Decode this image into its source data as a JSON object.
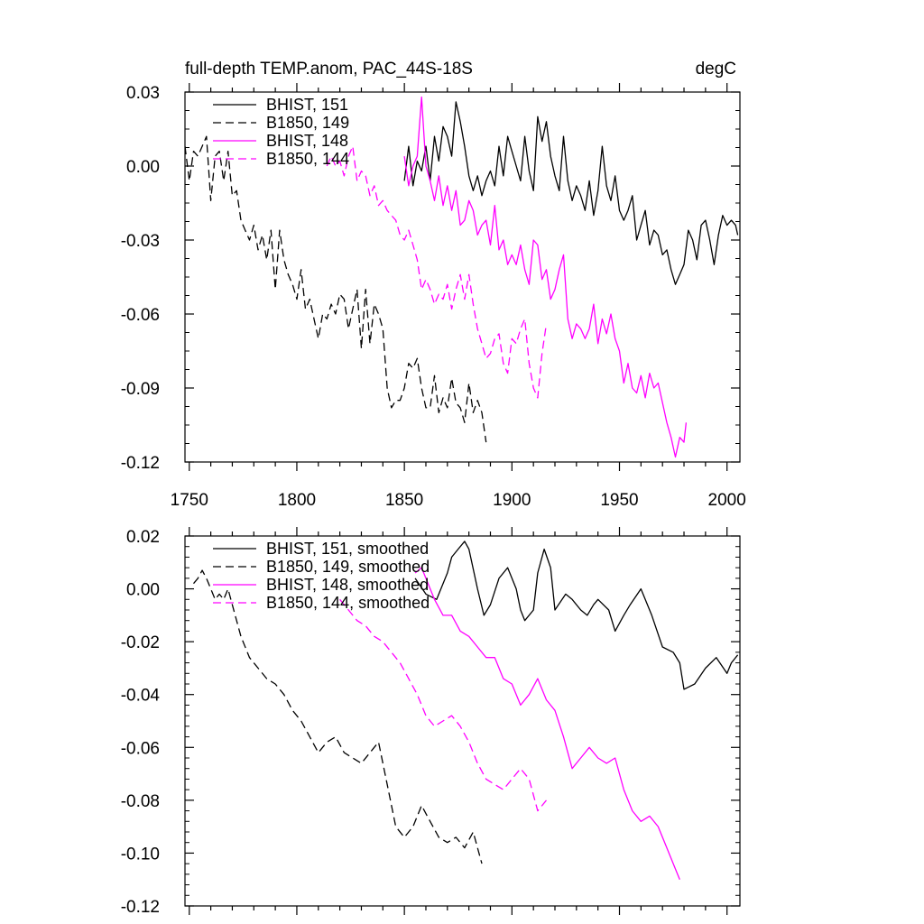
{
  "chart_data": [
    {
      "type": "line",
      "title": "full-depth TEMP.anom, PAC_44S-18S",
      "units": "degC",
      "xlim": [
        1748,
        2006
      ],
      "ylim": [
        -0.12,
        0.03
      ],
      "xticks": [
        1750,
        1800,
        1850,
        1900,
        1950,
        2000
      ],
      "yticks": [
        0.03,
        0.0,
        -0.03,
        -0.06,
        -0.09,
        -0.12
      ],
      "ytick_labels": [
        "0.03",
        "0.00",
        "-0.03",
        "-0.06",
        "-0.09",
        "-0.12"
      ],
      "legend_placement": "top-left",
      "series": [
        {
          "name": "BHIST, 151",
          "color": "#000000",
          "dash": "solid",
          "x": [
            1850,
            1852,
            1854,
            1856,
            1858,
            1860,
            1862,
            1864,
            1866,
            1868,
            1870,
            1872,
            1874,
            1876,
            1878,
            1880,
            1882,
            1884,
            1886,
            1888,
            1890,
            1892,
            1894,
            1896,
            1898,
            1900,
            1902,
            1904,
            1906,
            1908,
            1910,
            1912,
            1914,
            1916,
            1918,
            1920,
            1922,
            1924,
            1926,
            1928,
            1930,
            1932,
            1934,
            1936,
            1938,
            1940,
            1942,
            1944,
            1946,
            1948,
            1950,
            1952,
            1954,
            1956,
            1958,
            1960,
            1962,
            1964,
            1966,
            1968,
            1970,
            1972,
            1974,
            1976,
            1978,
            1980,
            1982,
            1984,
            1986,
            1988,
            1990,
            1992,
            1994,
            1996,
            1998,
            2000,
            2002,
            2004,
            2005
          ],
          "y": [
            -0.006,
            0.008,
            -0.008,
            0.002,
            -0.002,
            0.008,
            -0.006,
            0.012,
            0.002,
            0.016,
            0.012,
            0.004,
            0.026,
            0.018,
            0.008,
            -0.004,
            -0.01,
            -0.004,
            -0.012,
            -0.006,
            -0.002,
            -0.008,
            0.008,
            -0.004,
            0.012,
            0.006,
            0.0,
            -0.006,
            0.012,
            -0.002,
            -0.01,
            0.02,
            0.01,
            0.018,
            0.004,
            -0.004,
            -0.01,
            0.012,
            -0.006,
            -0.014,
            -0.008,
            -0.012,
            -0.018,
            -0.006,
            -0.02,
            -0.01,
            0.008,
            -0.008,
            -0.014,
            -0.004,
            -0.018,
            -0.022,
            -0.018,
            -0.012,
            -0.03,
            -0.024,
            -0.018,
            -0.032,
            -0.026,
            -0.028,
            -0.036,
            -0.034,
            -0.042,
            -0.048,
            -0.044,
            -0.04,
            -0.026,
            -0.03,
            -0.038,
            -0.024,
            -0.022,
            -0.03,
            -0.04,
            -0.028,
            -0.02,
            -0.024,
            -0.022,
            -0.024,
            -0.028
          ]
        },
        {
          "name": "B1850, 149",
          "color": "#000000",
          "dash": "dash",
          "x": [
            1748,
            1750,
            1752,
            1754,
            1756,
            1758,
            1760,
            1762,
            1764,
            1766,
            1768,
            1770,
            1772,
            1774,
            1776,
            1778,
            1780,
            1782,
            1784,
            1786,
            1788,
            1790,
            1792,
            1794,
            1796,
            1798,
            1800,
            1802,
            1804,
            1806,
            1808,
            1810,
            1812,
            1814,
            1816,
            1818,
            1820,
            1822,
            1824,
            1826,
            1828,
            1830,
            1832,
            1834,
            1836,
            1838,
            1840,
            1842,
            1844,
            1846,
            1848,
            1850,
            1852,
            1854,
            1856,
            1858,
            1860,
            1862,
            1864,
            1866,
            1868,
            1870,
            1872,
            1874,
            1876,
            1878,
            1880,
            1882,
            1884,
            1886,
            1888
          ],
          "y": [
            0.008,
            -0.006,
            0.006,
            0.004,
            0.008,
            0.012,
            -0.014,
            0.004,
            0.006,
            -0.006,
            0.006,
            -0.012,
            -0.01,
            -0.022,
            -0.026,
            -0.03,
            -0.024,
            -0.034,
            -0.028,
            -0.038,
            -0.026,
            -0.05,
            -0.026,
            -0.038,
            -0.044,
            -0.048,
            -0.054,
            -0.042,
            -0.058,
            -0.054,
            -0.062,
            -0.07,
            -0.06,
            -0.062,
            -0.056,
            -0.06,
            -0.052,
            -0.054,
            -0.066,
            -0.058,
            -0.05,
            -0.074,
            -0.05,
            -0.072,
            -0.056,
            -0.06,
            -0.066,
            -0.09,
            -0.098,
            -0.095,
            -0.095,
            -0.09,
            -0.08,
            -0.082,
            -0.078,
            -0.09,
            -0.098,
            -0.098,
            -0.085,
            -0.1,
            -0.094,
            -0.098,
            -0.086,
            -0.096,
            -0.098,
            -0.104,
            -0.088,
            -0.1,
            -0.095,
            -0.1,
            -0.112
          ]
        },
        {
          "name": "BHIST, 148",
          "color": "#ff00ff",
          "dash": "solid",
          "x": [
            1850,
            1852,
            1854,
            1856,
            1858,
            1860,
            1862,
            1864,
            1866,
            1868,
            1870,
            1872,
            1874,
            1876,
            1878,
            1880,
            1882,
            1884,
            1886,
            1888,
            1890,
            1892,
            1894,
            1896,
            1898,
            1900,
            1902,
            1904,
            1906,
            1908,
            1910,
            1912,
            1914,
            1916,
            1918,
            1920,
            1922,
            1924,
            1926,
            1928,
            1930,
            1932,
            1934,
            1936,
            1938,
            1940,
            1942,
            1944,
            1946,
            1948,
            1950,
            1952,
            1954,
            1956,
            1958,
            1960,
            1962,
            1964,
            1966,
            1968,
            1970,
            1972,
            1974,
            1976,
            1978,
            1980,
            1981
          ],
          "y": [
            0.004,
            -0.008,
            0.0,
            0.004,
            0.028,
            0.0,
            -0.006,
            -0.014,
            -0.004,
            -0.016,
            -0.008,
            -0.018,
            -0.01,
            -0.024,
            -0.022,
            -0.014,
            -0.018,
            -0.028,
            -0.024,
            -0.022,
            -0.032,
            -0.016,
            -0.034,
            -0.03,
            -0.04,
            -0.036,
            -0.04,
            -0.032,
            -0.042,
            -0.048,
            -0.03,
            -0.032,
            -0.046,
            -0.042,
            -0.054,
            -0.05,
            -0.042,
            -0.036,
            -0.062,
            -0.07,
            -0.064,
            -0.066,
            -0.07,
            -0.066,
            -0.056,
            -0.072,
            -0.062,
            -0.068,
            -0.06,
            -0.07,
            -0.075,
            -0.088,
            -0.08,
            -0.09,
            -0.092,
            -0.085,
            -0.094,
            -0.084,
            -0.09,
            -0.088,
            -0.096,
            -0.104,
            -0.11,
            -0.118,
            -0.11,
            -0.112,
            -0.104
          ]
        },
        {
          "name": "B1850, 144",
          "color": "#ff00ff",
          "dash": "dash",
          "x": [
            1814,
            1816,
            1818,
            1820,
            1822,
            1824,
            1826,
            1828,
            1830,
            1832,
            1834,
            1836,
            1838,
            1840,
            1842,
            1844,
            1846,
            1848,
            1850,
            1852,
            1854,
            1856,
            1858,
            1860,
            1862,
            1864,
            1866,
            1868,
            1870,
            1872,
            1874,
            1876,
            1878,
            1880,
            1882,
            1884,
            1886,
            1888,
            1890,
            1892,
            1894,
            1896,
            1898,
            1900,
            1902,
            1904,
            1906,
            1908,
            1910,
            1912,
            1914,
            1916
          ],
          "y": [
            0.0,
            0.004,
            0.0,
            0.002,
            -0.004,
            0.004,
            0.008,
            -0.006,
            -0.002,
            -0.004,
            -0.012,
            -0.008,
            -0.016,
            -0.014,
            -0.018,
            -0.02,
            -0.022,
            -0.028,
            -0.03,
            -0.026,
            -0.032,
            -0.038,
            -0.05,
            -0.046,
            -0.05,
            -0.056,
            -0.052,
            -0.054,
            -0.048,
            -0.058,
            -0.05,
            -0.044,
            -0.054,
            -0.044,
            -0.056,
            -0.066,
            -0.072,
            -0.078,
            -0.076,
            -0.07,
            -0.068,
            -0.08,
            -0.084,
            -0.07,
            -0.072,
            -0.066,
            -0.062,
            -0.08,
            -0.09,
            -0.094,
            -0.076,
            -0.064
          ]
        }
      ]
    },
    {
      "type": "line",
      "title": "",
      "xlim": [
        1748,
        2006
      ],
      "ylim": [
        -0.12,
        0.02
      ],
      "yticks": [
        0.02,
        0.0,
        -0.02,
        -0.04,
        -0.06,
        -0.08,
        -0.1,
        -0.12
      ],
      "ytick_labels": [
        "0.02",
        "0.00",
        "-0.02",
        "-0.04",
        "-0.06",
        "-0.08",
        "-0.10",
        "-0.12"
      ],
      "legend_placement": "top-left",
      "series": [
        {
          "name": "BHIST, 151, smoothed",
          "color": "#000000",
          "dash": "solid",
          "x": [
            1855,
            1860,
            1865,
            1870,
            1872,
            1875,
            1878,
            1880,
            1884,
            1887,
            1890,
            1894,
            1898,
            1902,
            1904,
            1906,
            1910,
            1912,
            1915,
            1918,
            1920,
            1925,
            1928,
            1932,
            1935,
            1938,
            1940,
            1945,
            1948,
            1952,
            1955,
            1960,
            1965,
            1970,
            1975,
            1978,
            1980,
            1985,
            1990,
            1995,
            2000,
            2002,
            2005
          ],
          "y": [
            0.004,
            -0.002,
            -0.004,
            0.006,
            0.012,
            0.015,
            0.018,
            0.015,
            0.0,
            -0.01,
            -0.006,
            0.004,
            0.008,
            0.0,
            -0.008,
            -0.012,
            -0.008,
            0.006,
            0.015,
            0.008,
            -0.008,
            -0.002,
            -0.004,
            -0.008,
            -0.01,
            -0.006,
            -0.004,
            -0.008,
            -0.016,
            -0.01,
            -0.006,
            0.0,
            -0.01,
            -0.022,
            -0.024,
            -0.028,
            -0.038,
            -0.036,
            -0.03,
            -0.026,
            -0.032,
            -0.028,
            -0.025
          ]
        },
        {
          "name": "B1850, 149, smoothed",
          "color": "#000000",
          "dash": "dash",
          "x": [
            1752,
            1754,
            1756,
            1758,
            1760,
            1762,
            1764,
            1766,
            1768,
            1770,
            1772,
            1774,
            1778,
            1782,
            1786,
            1790,
            1794,
            1798,
            1802,
            1806,
            1810,
            1814,
            1818,
            1822,
            1826,
            1830,
            1834,
            1838,
            1842,
            1846,
            1850,
            1854,
            1858,
            1862,
            1866,
            1870,
            1874,
            1878,
            1882,
            1886
          ],
          "y": [
            0.002,
            0.004,
            0.007,
            0.004,
            0.0,
            -0.004,
            -0.002,
            -0.004,
            0.0,
            -0.006,
            -0.012,
            -0.018,
            -0.026,
            -0.03,
            -0.034,
            -0.036,
            -0.04,
            -0.046,
            -0.05,
            -0.056,
            -0.062,
            -0.058,
            -0.056,
            -0.062,
            -0.064,
            -0.066,
            -0.062,
            -0.058,
            -0.074,
            -0.09,
            -0.094,
            -0.09,
            -0.082,
            -0.088,
            -0.094,
            -0.096,
            -0.094,
            -0.098,
            -0.092,
            -0.104
          ]
        },
        {
          "name": "BHIST, 148, smoothed",
          "color": "#ff00ff",
          "dash": "solid",
          "x": [
            1855,
            1858,
            1860,
            1864,
            1868,
            1872,
            1876,
            1880,
            1884,
            1888,
            1892,
            1896,
            1900,
            1904,
            1908,
            1912,
            1916,
            1920,
            1924,
            1928,
            1932,
            1936,
            1940,
            1944,
            1948,
            1952,
            1956,
            1960,
            1964,
            1968,
            1972,
            1976,
            1978
          ],
          "y": [
            0.006,
            0.008,
            0.004,
            -0.004,
            -0.01,
            -0.01,
            -0.016,
            -0.018,
            -0.022,
            -0.026,
            -0.026,
            -0.034,
            -0.036,
            -0.044,
            -0.04,
            -0.034,
            -0.042,
            -0.046,
            -0.056,
            -0.068,
            -0.064,
            -0.06,
            -0.064,
            -0.066,
            -0.064,
            -0.076,
            -0.084,
            -0.088,
            -0.086,
            -0.09,
            -0.098,
            -0.106,
            -0.11
          ]
        },
        {
          "name": "B1850, 144, smoothed",
          "color": "#ff00ff",
          "dash": "dash",
          "x": [
            1820,
            1824,
            1828,
            1832,
            1836,
            1840,
            1844,
            1848,
            1852,
            1856,
            1860,
            1864,
            1868,
            1872,
            1876,
            1880,
            1884,
            1888,
            1892,
            1896,
            1900,
            1904,
            1908,
            1912,
            1916
          ],
          "y": [
            -0.004,
            -0.008,
            -0.012,
            -0.014,
            -0.018,
            -0.02,
            -0.024,
            -0.028,
            -0.034,
            -0.04,
            -0.048,
            -0.052,
            -0.05,
            -0.048,
            -0.052,
            -0.058,
            -0.066,
            -0.072,
            -0.074,
            -0.076,
            -0.072,
            -0.068,
            -0.072,
            -0.084,
            -0.08
          ]
        }
      ]
    }
  ]
}
